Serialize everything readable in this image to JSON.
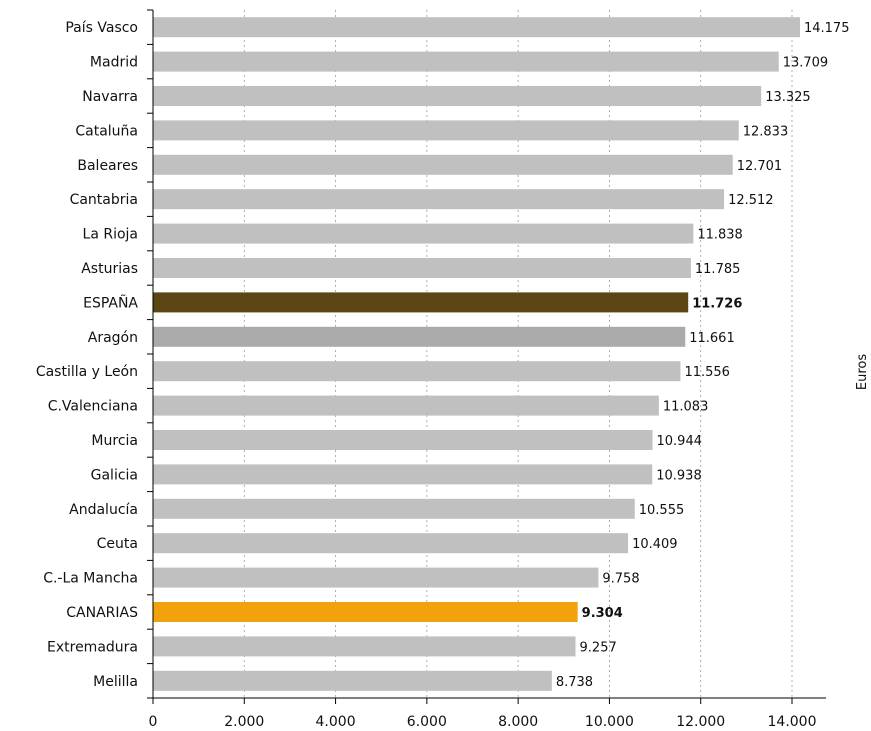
{
  "chart_data": {
    "type": "bar",
    "orientation": "horizontal",
    "categories": [
      "País Vasco",
      "Madrid",
      "Navarra",
      "Cataluña",
      "Baleares",
      "Cantabria",
      "La Rioja",
      "Asturias",
      "ESPAÑA",
      "Aragón",
      "Castilla y León",
      "C.Valenciana",
      "Murcia",
      "Galicia",
      "Andalucía",
      "Ceuta",
      "C.-La Mancha",
      "CANARIAS",
      "Extremadura",
      "Melilla"
    ],
    "values": [
      14175,
      13709,
      13325,
      12833,
      12701,
      12512,
      11838,
      11785,
      11726,
      11661,
      11556,
      11083,
      10944,
      10938,
      10555,
      10409,
      9758,
      9304,
      9257,
      8738
    ],
    "value_labels": [
      "14.175",
      "13.709",
      "13.325",
      "12.833",
      "12.701",
      "12.512",
      "11.838",
      "11.785",
      "11.726",
      "11.661",
      "11.556",
      "11.083",
      "10.944",
      "10.938",
      "10.555",
      "10.409",
      "9.758",
      "9.304",
      "9.257",
      "8.738"
    ],
    "highlight": {
      "ESPAÑA": {
        "color": "#5c4614",
        "bold_label": true
      },
      "CANARIAS": {
        "color": "#f2a20c",
        "bold_label": true
      },
      "Aragón": {
        "color": "#aaaaaa",
        "bold_label": false
      }
    },
    "bar_color": "#c0c0c0",
    "xlim": [
      0,
      15000
    ],
    "x_ticks": [
      0,
      2000,
      4000,
      6000,
      8000,
      10000,
      12000,
      14000
    ],
    "x_tick_labels": [
      "0",
      "2.000",
      "4.000",
      "6.000",
      "8.000",
      "10.000",
      "12.000",
      "14.000"
    ],
    "unit_label": "Euros",
    "grid": "vertical dashed",
    "title": "",
    "xlabel": "",
    "ylabel": ""
  }
}
